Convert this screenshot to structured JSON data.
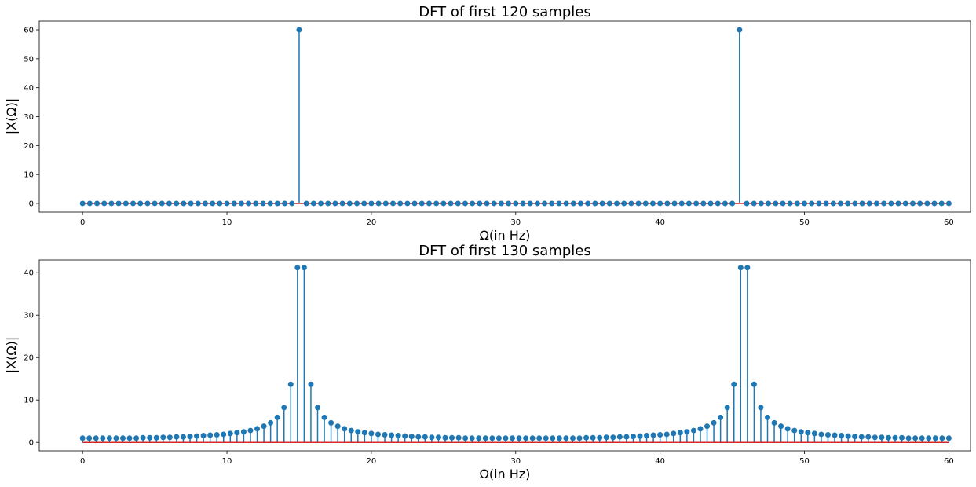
{
  "chart_data": [
    {
      "type": "stem",
      "title": "DFT of first 120 samples",
      "xlabel": "Ω(in Hz)",
      "ylabel": "|X(Ω)|",
      "xlim": [
        -3,
        61.5
      ],
      "ylim": [
        -3,
        63
      ],
      "xticks": [
        0,
        10,
        20,
        30,
        40,
        50,
        60
      ],
      "yticks": [
        0,
        10,
        20,
        30,
        40,
        50,
        60
      ],
      "grid": false,
      "n_points": 121,
      "x_start": 0,
      "x_end": 60,
      "baseline": 0,
      "values_description": "zero except peaks",
      "peaks": [
        {
          "x": 15.1,
          "y": 60
        },
        {
          "x": 45.4,
          "y": 60
        }
      ],
      "marker_color": "#1f77b4",
      "baseline_color": "#d62728"
    },
    {
      "type": "stem",
      "title": "DFT of first 130 samples",
      "xlabel": "Ω(in Hz)",
      "ylabel": "|X(Ω)|",
      "xlim": [
        -3,
        61.5
      ],
      "ylim": [
        -2,
        43
      ],
      "xticks": [
        0,
        10,
        20,
        30,
        40,
        50,
        60
      ],
      "yticks": [
        0,
        10,
        20,
        30,
        40
      ],
      "grid": false,
      "n_points": 130,
      "x_start": 0,
      "x_end": 60,
      "baseline": 0,
      "values": [
        1.0,
        1.0,
        1.0,
        1.0,
        1.0,
        1.0,
        1.0,
        1.0,
        1.0,
        1.1,
        1.1,
        1.1,
        1.2,
        1.2,
        1.3,
        1.3,
        1.4,
        1.5,
        1.6,
        1.7,
        1.8,
        1.9,
        2.1,
        2.3,
        2.5,
        2.8,
        3.2,
        3.8,
        4.6,
        5.9,
        8.2,
        13.7,
        41.2,
        41.2,
        13.7,
        8.2,
        5.9,
        4.6,
        3.8,
        3.2,
        2.8,
        2.5,
        2.3,
        2.1,
        1.9,
        1.8,
        1.7,
        1.6,
        1.5,
        1.4,
        1.3,
        1.3,
        1.2,
        1.2,
        1.1,
        1.1,
        1.1,
        1.0,
        1.0,
        1.0,
        1.0,
        1.0,
        1.0,
        1.0,
        1.0,
        1.0,
        1.0,
        1.0,
        1.0,
        1.0,
        1.0,
        1.0,
        1.0,
        1.0,
        1.0,
        1.1,
        1.1,
        1.1,
        1.2,
        1.2,
        1.3,
        1.3,
        1.4,
        1.5,
        1.6,
        1.7,
        1.8,
        1.9,
        2.1,
        2.3,
        2.5,
        2.8,
        3.2,
        3.8,
        4.6,
        5.9,
        8.2,
        13.7,
        41.2,
        41.2,
        13.7,
        8.2,
        5.9,
        4.6,
        3.8,
        3.2,
        2.8,
        2.5,
        2.3,
        2.1,
        1.9,
        1.8,
        1.7,
        1.6,
        1.5,
        1.4,
        1.3,
        1.3,
        1.2,
        1.2,
        1.1,
        1.1,
        1.1,
        1.0,
        1.0,
        1.0,
        1.0,
        1.0,
        1.0,
        1.0
      ],
      "marker_color": "#1f77b4",
      "baseline_color": "#d62728"
    }
  ]
}
